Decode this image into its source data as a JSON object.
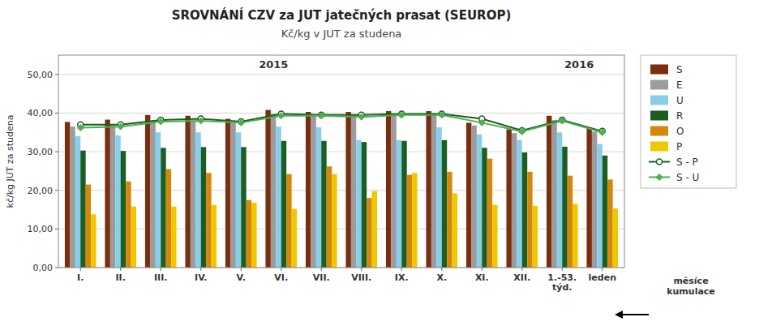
{
  "chart_data": {
    "type": "bar",
    "title": "SROVNÁNÍ  CZV za JUT jatečných prasat (SEUROP)",
    "subtitle": "Kč/kg v JUT za studena",
    "ylabel": "kč/kg JUT za studena",
    "xlabel": "měsíce\nkumulace",
    "annotations": [
      "2015",
      "2016"
    ],
    "categories": [
      "I.",
      "II.",
      "III.",
      "IV.",
      "V.",
      "VI.",
      "VII.",
      "VIII.",
      "IX.",
      "X.",
      "XI.",
      "XII.",
      "1.-53.\ntýd.",
      "leden"
    ],
    "ylim": [
      0,
      55
    ],
    "yticks": [
      {
        "value": 0,
        "label": "0,00"
      },
      {
        "value": 10,
        "label": "10,00"
      },
      {
        "value": 20,
        "label": "20,00"
      },
      {
        "value": 30,
        "label": "30,00"
      },
      {
        "value": 40,
        "label": "40,00"
      },
      {
        "value": 50,
        "label": "50,00"
      }
    ],
    "grid": true,
    "legend": "right",
    "series": [
      {
        "name": "S",
        "color": "#7B2E0E",
        "values": [
          37.7,
          38.3,
          39.5,
          39.3,
          38.5,
          40.8,
          40.3,
          40.3,
          40.5,
          40.5,
          37.5,
          35.8,
          39.3,
          36.2
        ]
      },
      {
        "name": "E",
        "color": "#9C9C9C",
        "values": [
          36.5,
          36.8,
          37.8,
          38.0,
          37.5,
          39.8,
          39.5,
          39.5,
          39.8,
          39.8,
          36.8,
          34.8,
          38.2,
          35.2
        ]
      },
      {
        "name": "U",
        "color": "#87CEEB",
        "values": [
          34.0,
          34.2,
          35.0,
          35.0,
          35.0,
          36.5,
          36.3,
          33.0,
          33.0,
          36.3,
          34.5,
          33.0,
          35.0,
          32.0
        ]
      },
      {
        "name": "R",
        "color": "#1B5E20",
        "values": [
          30.3,
          30.2,
          31.0,
          31.2,
          31.2,
          32.8,
          32.8,
          32.5,
          32.8,
          33.0,
          31.0,
          29.8,
          31.3,
          29.0
        ]
      },
      {
        "name": "O",
        "color": "#D4870A",
        "values": [
          21.5,
          22.3,
          25.5,
          24.5,
          17.5,
          24.2,
          26.2,
          18.0,
          24.0,
          24.8,
          28.2,
          24.8,
          23.8,
          22.8
        ]
      },
      {
        "name": "P",
        "color": "#F0C800",
        "values": [
          13.8,
          15.8,
          15.8,
          16.2,
          16.8,
          15.2,
          24.2,
          19.8,
          24.5,
          19.2,
          16.2,
          16.0,
          16.5,
          15.3
        ]
      },
      {
        "name": "S - P",
        "type": "line",
        "color": "#1B5E20",
        "marker": "circle",
        "values": [
          37.0,
          37.0,
          38.2,
          38.5,
          37.8,
          39.8,
          39.5,
          39.5,
          39.8,
          39.8,
          38.5,
          35.5,
          38.2,
          35.3
        ]
      },
      {
        "name": "S - U",
        "type": "line",
        "color": "#4CAF50",
        "marker": "diamond",
        "values": [
          36.2,
          36.5,
          37.8,
          38.0,
          37.5,
          39.3,
          39.3,
          39.0,
          39.5,
          39.5,
          37.5,
          35.2,
          38.0,
          35.0
        ]
      }
    ]
  }
}
